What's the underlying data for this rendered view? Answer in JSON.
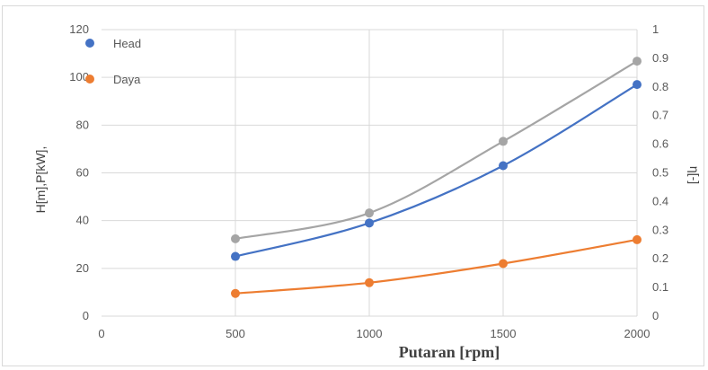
{
  "chart_data": {
    "type": "line",
    "x": [
      500,
      1000,
      1500,
      2000
    ],
    "xlabel": "Putaran [rpm]",
    "ylabel": "H[m],P[kW],",
    "y2label": "η[-]",
    "xlim": [
      0,
      2000
    ],
    "xticks": [
      "0",
      "500",
      "1000",
      "1500",
      "2000"
    ],
    "ylim": [
      0,
      120
    ],
    "yticks": [
      "0",
      "20",
      "40",
      "60",
      "80",
      "100",
      "120"
    ],
    "y2lim": [
      0,
      1
    ],
    "y2ticks": [
      "0",
      "0.1",
      "0.2",
      "0.3",
      "0.4",
      "0.5",
      "0.6",
      "0.7",
      "0.8",
      "0.9",
      "1"
    ],
    "grid": true,
    "legend_position": "top-left",
    "series": [
      {
        "name": "Head",
        "axis": "left",
        "color": "#4472c4",
        "values": [
          25,
          39,
          63,
          97
        ]
      },
      {
        "name": "Daya",
        "axis": "left",
        "color": "#ed7d31",
        "values": [
          9.5,
          14,
          22,
          32
        ]
      },
      {
        "axis": "right",
        "color": "#a5a5a5",
        "values": [
          0.27,
          0.36,
          0.61,
          0.89
        ]
      }
    ]
  }
}
